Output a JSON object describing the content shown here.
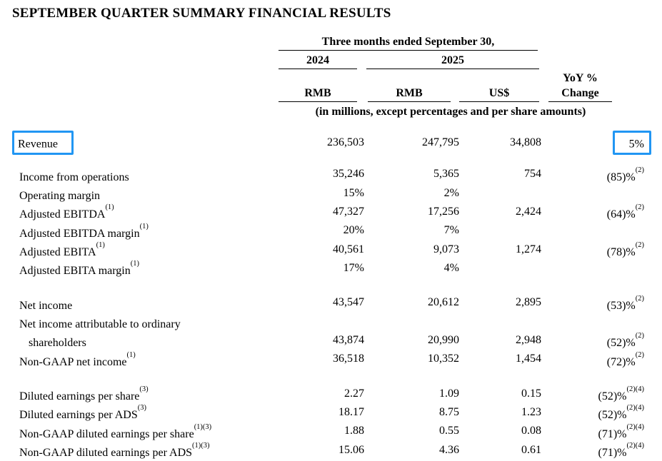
{
  "page": {
    "title": "SEPTEMBER QUARTER SUMMARY FINANCIAL RESULTS",
    "background_color": "#ffffff",
    "text_color": "#000000",
    "highlight_box_color": "#2196f3"
  },
  "table": {
    "header": {
      "period": "Three months ended September 30,",
      "year_left": "2024",
      "year_right": "2025",
      "col_2024_currency": "RMB",
      "col_2025_currency": "RMB",
      "col_2025_usd": "US$",
      "yoy_line1": "YoY %",
      "yoy_line2": "Change",
      "units_note": "(in millions, except percentages and per share amounts)"
    },
    "rows": [
      {
        "label": "Revenue",
        "label_sup": "",
        "rmb_2024": "236,503",
        "rmb_2025": "247,795",
        "usd": "34,808",
        "yoy": "5%",
        "yoy_sup": "",
        "highlighted": true
      },
      {
        "label": "Income from operations",
        "label_sup": "",
        "rmb_2024": "35,246",
        "rmb_2025": "5,365",
        "usd": "754",
        "yoy": "(85)%",
        "yoy_sup": "(2)"
      },
      {
        "label": "Operating margin",
        "label_sup": "",
        "rmb_2024": "15%",
        "rmb_2025": "2%",
        "usd": "",
        "yoy": "",
        "yoy_sup": ""
      },
      {
        "label": "Adjusted EBITDA",
        "label_sup": "(1)",
        "rmb_2024": "47,327",
        "rmb_2025": "17,256",
        "usd": "2,424",
        "yoy": "(64)%",
        "yoy_sup": "(2)"
      },
      {
        "label": "Adjusted EBITDA margin",
        "label_sup": "(1)",
        "rmb_2024": "20%",
        "rmb_2025": "7%",
        "usd": "",
        "yoy": "",
        "yoy_sup": ""
      },
      {
        "label": "Adjusted EBITA",
        "label_sup": "(1)",
        "rmb_2024": "40,561",
        "rmb_2025": "9,073",
        "usd": "1,274",
        "yoy": "(78)%",
        "yoy_sup": "(2)"
      },
      {
        "label": "Adjusted EBITA margin",
        "label_sup": "(1)",
        "rmb_2024": "17%",
        "rmb_2025": "4%",
        "usd": "",
        "yoy": "",
        "yoy_sup": ""
      },
      {
        "label": "Net income",
        "label_sup": "",
        "rmb_2024": "43,547",
        "rmb_2025": "20,612",
        "usd": "2,895",
        "yoy": "(53)%",
        "yoy_sup": "(2)",
        "spacer_before": true
      },
      {
        "label": "Net income attributable to ordinary",
        "label_sup": "",
        "rmb_2024": "",
        "rmb_2025": "",
        "usd": "",
        "yoy": "",
        "yoy_sup": ""
      },
      {
        "label": "shareholders",
        "label_sup": "",
        "rmb_2024": "43,874",
        "rmb_2025": "20,990",
        "usd": "2,948",
        "yoy": "(52)%",
        "yoy_sup": "(2)",
        "indent": true
      },
      {
        "label": "Non-GAAP net income",
        "label_sup": "(1)",
        "rmb_2024": "36,518",
        "rmb_2025": "10,352",
        "usd": "1,454",
        "yoy": "(72)%",
        "yoy_sup": "(2)"
      },
      {
        "label": "Diluted earnings per share",
        "label_sup": "(3)",
        "rmb_2024": "2.27",
        "rmb_2025": "1.09",
        "usd": "0.15",
        "yoy": "(52)%",
        "yoy_sup": "(2)(4)",
        "spacer_before": true
      },
      {
        "label": "Diluted earnings per ADS",
        "label_sup": "(3)",
        "rmb_2024": "18.17",
        "rmb_2025": "8.75",
        "usd": "1.23",
        "yoy": "(52)%",
        "yoy_sup": "(2)(4)"
      },
      {
        "label": "Non-GAAP diluted earnings per share",
        "label_sup": "(1)(3)",
        "rmb_2024": "1.88",
        "rmb_2025": "0.55",
        "usd": "0.08",
        "yoy": "(71)%",
        "yoy_sup": "(2)(4)"
      },
      {
        "label": "Non-GAAP diluted earnings per ADS",
        "label_sup": "(1)(3)",
        "rmb_2024": "15.06",
        "rmb_2025": "4.36",
        "usd": "0.61",
        "yoy": "(71)%",
        "yoy_sup": "(2)(4)"
      }
    ]
  }
}
